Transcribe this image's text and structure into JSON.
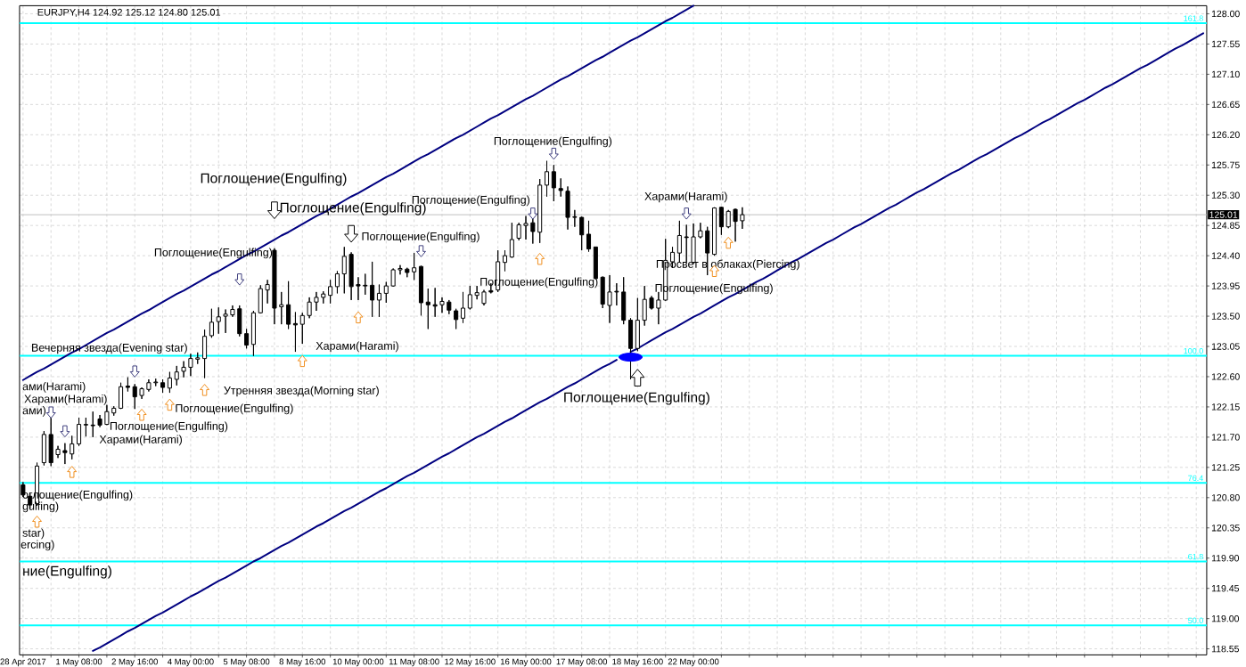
{
  "chart_data": {
    "type": "candlestick",
    "title": "EURJPY,H4 124.92 125.12 124.80 125.01",
    "categories": [
      "28 Apr 2017",
      null,
      null,
      null,
      null,
      null,
      null,
      null,
      "1 May 08:00",
      null,
      null,
      null,
      null,
      null,
      null,
      null,
      "2 May 16:00",
      null,
      null,
      null,
      null,
      null,
      null,
      null,
      "4 May 00:00",
      null,
      null,
      null,
      null,
      null,
      null,
      null,
      "5 May 08:00",
      null,
      null,
      null,
      null,
      null,
      null,
      null,
      "8 May 16:00",
      null,
      null,
      null,
      null,
      null,
      null,
      null,
      "10 May 00:00",
      null,
      null,
      null,
      null,
      null,
      null,
      null,
      "11 May 08:00",
      null,
      null,
      null,
      null,
      null,
      null,
      null,
      "12 May 16:00",
      null,
      null,
      null,
      null,
      null,
      null,
      null,
      "16 May 00:00",
      null,
      null,
      null,
      null,
      null,
      null,
      null,
      "17 May 08:00",
      null,
      null,
      null,
      null,
      null,
      null,
      null,
      "18 May 16:00",
      null,
      null,
      null,
      null,
      null,
      null,
      null,
      "22 May 00:00",
      null,
      null,
      null,
      null,
      null,
      null,
      null,
      null,
      null,
      null,
      null,
      null,
      null,
      null,
      null,
      null,
      null,
      null,
      null,
      null,
      null,
      null,
      null,
      null,
      null,
      null,
      null,
      null,
      null,
      null,
      null,
      null,
      null,
      null,
      null,
      null,
      null,
      null,
      null,
      null,
      null,
      null,
      null,
      null,
      null,
      null,
      null,
      null,
      null,
      null,
      null,
      null,
      null,
      null,
      null,
      null,
      null,
      null,
      null,
      null,
      null,
      null,
      null,
      null,
      null,
      null,
      null,
      null,
      null,
      null,
      null,
      null,
      null
    ],
    "ohlc": [
      [
        120.99,
        121.03,
        120.81,
        120.84
      ],
      [
        120.82,
        120.86,
        120.64,
        120.69
      ],
      [
        120.71,
        121.32,
        120.68,
        121.27
      ],
      [
        121.32,
        121.79,
        121.28,
        121.74
      ],
      [
        121.74,
        122.03,
        121.27,
        121.32
      ],
      [
        121.44,
        121.57,
        121.39,
        121.52
      ],
      [
        121.5,
        121.61,
        121.3,
        121.47
      ],
      [
        121.45,
        121.72,
        121.37,
        121.6
      ],
      [
        121.6,
        121.99,
        121.57,
        121.89
      ],
      [
        121.88,
        121.99,
        121.71,
        121.89
      ],
      [
        121.88,
        122.08,
        121.7,
        121.87
      ],
      [
        121.97,
        122.03,
        121.85,
        121.88
      ],
      [
        121.89,
        122.18,
        121.88,
        122.08
      ],
      [
        122.06,
        122.16,
        122.02,
        122.13
      ],
      [
        122.13,
        122.51,
        122.12,
        122.45
      ],
      [
        122.46,
        122.59,
        122.38,
        122.44
      ],
      [
        122.45,
        122.49,
        122.12,
        122.3
      ],
      [
        122.32,
        122.44,
        122.27,
        122.42
      ],
      [
        122.41,
        122.56,
        122.38,
        122.51
      ],
      [
        122.51,
        122.57,
        122.46,
        122.52
      ],
      [
        122.51,
        122.56,
        122.36,
        122.44
      ],
      [
        122.43,
        122.67,
        122.36,
        122.58
      ],
      [
        122.56,
        122.76,
        122.47,
        122.67
      ],
      [
        122.68,
        122.83,
        122.59,
        122.74
      ],
      [
        122.74,
        122.94,
        122.61,
        122.87
      ],
      [
        122.86,
        122.96,
        122.79,
        122.88
      ],
      [
        122.87,
        123.3,
        122.58,
        123.2
      ],
      [
        123.21,
        123.61,
        123.18,
        123.41
      ],
      [
        123.42,
        123.63,
        123.24,
        123.49
      ],
      [
        123.5,
        123.6,
        123.25,
        123.53
      ],
      [
        123.52,
        123.66,
        123.49,
        123.6
      ],
      [
        123.61,
        123.66,
        123.2,
        123.24
      ],
      [
        123.24,
        123.31,
        123.02,
        123.07
      ],
      [
        123.08,
        123.58,
        122.91,
        123.55
      ],
      [
        123.55,
        123.96,
        123.54,
        123.91
      ],
      [
        123.89,
        124.04,
        123.69,
        123.97
      ],
      [
        124.48,
        124.51,
        123.38,
        123.62
      ],
      [
        123.64,
        123.86,
        123.38,
        123.67
      ],
      [
        123.67,
        124.02,
        123.31,
        123.38
      ],
      [
        123.39,
        123.56,
        122.97,
        123.37
      ],
      [
        123.38,
        123.55,
        123.09,
        123.51
      ],
      [
        123.51,
        123.78,
        123.47,
        123.71
      ],
      [
        123.71,
        123.86,
        123.58,
        123.78
      ],
      [
        123.78,
        123.87,
        123.69,
        123.83
      ],
      [
        123.81,
        124.04,
        123.69,
        123.94
      ],
      [
        123.94,
        124.17,
        123.84,
        124.13
      ],
      [
        124.13,
        124.53,
        123.84,
        124.39
      ],
      [
        124.42,
        124.45,
        123.74,
        123.94
      ],
      [
        123.97,
        124.08,
        123.74,
        123.95
      ],
      [
        123.96,
        124.13,
        123.82,
        123.95
      ],
      [
        123.96,
        124.31,
        123.49,
        123.74
      ],
      [
        123.74,
        123.97,
        123.49,
        123.84
      ],
      [
        123.84,
        124.01,
        123.7,
        123.95
      ],
      [
        123.95,
        124.21,
        123.94,
        124.19
      ],
      [
        124.19,
        124.26,
        124.12,
        124.21
      ],
      [
        124.2,
        124.22,
        124.08,
        124.15
      ],
      [
        124.16,
        124.44,
        124.04,
        124.22
      ],
      [
        124.24,
        124.25,
        123.51,
        123.7
      ],
      [
        123.71,
        123.91,
        123.31,
        123.67
      ],
      [
        123.67,
        123.92,
        123.49,
        123.65
      ],
      [
        123.67,
        123.78,
        123.55,
        123.72
      ],
      [
        123.71,
        123.74,
        123.53,
        123.59
      ],
      [
        123.58,
        123.61,
        123.31,
        123.45
      ],
      [
        123.47,
        123.86,
        123.4,
        123.62
      ],
      [
        123.62,
        123.95,
        123.6,
        123.82
      ],
      [
        123.81,
        123.95,
        123.75,
        123.85
      ],
      [
        123.69,
        123.89,
        123.66,
        123.86
      ],
      [
        123.88,
        123.99,
        123.84,
        123.86
      ],
      [
        123.89,
        124.48,
        123.86,
        124.31
      ],
      [
        124.3,
        124.48,
        124.17,
        124.4
      ],
      [
        124.38,
        124.89,
        124.37,
        124.64
      ],
      [
        124.66,
        124.89,
        124.63,
        124.86
      ],
      [
        124.85,
        124.99,
        124.64,
        124.88
      ],
      [
        124.89,
        124.97,
        124.58,
        124.76
      ],
      [
        124.75,
        125.54,
        124.59,
        125.45
      ],
      [
        125.45,
        125.81,
        125.28,
        125.65
      ],
      [
        125.65,
        125.75,
        125.21,
        125.41
      ],
      [
        125.4,
        125.55,
        125.28,
        125.37
      ],
      [
        125.36,
        125.43,
        124.79,
        124.97
      ],
      [
        124.98,
        125.08,
        124.83,
        124.97
      ],
      [
        124.97,
        124.98,
        124.48,
        124.71
      ],
      [
        124.72,
        124.92,
        124.46,
        124.5
      ],
      [
        124.53,
        124.53,
        124.05,
        124.06
      ],
      [
        124.08,
        124.09,
        123.62,
        123.68
      ],
      [
        123.66,
        124.11,
        123.4,
        123.86
      ],
      [
        123.87,
        123.99,
        123.66,
        123.86
      ],
      [
        123.86,
        124.08,
        123.38,
        123.44
      ],
      [
        123.44,
        123.47,
        122.56,
        123.02
      ],
      [
        123.02,
        123.77,
        122.98,
        123.44
      ],
      [
        123.44,
        123.95,
        123.36,
        123.75
      ],
      [
        123.77,
        123.8,
        123.6,
        123.62
      ],
      [
        123.62,
        123.86,
        123.38,
        123.74
      ],
      [
        123.74,
        124.65,
        123.73,
        124.33
      ],
      [
        124.31,
        124.53,
        124.22,
        124.45
      ],
      [
        124.44,
        124.92,
        124.3,
        124.7
      ],
      [
        124.68,
        124.86,
        124.3,
        124.67
      ],
      [
        124.3,
        124.88,
        124.28,
        124.68
      ],
      [
        124.68,
        124.89,
        124.66,
        124.77
      ],
      [
        124.77,
        124.83,
        124.11,
        124.44
      ],
      [
        124.42,
        125.12,
        124.4,
        125.11
      ],
      [
        125.12,
        125.13,
        124.71,
        124.83
      ],
      [
        124.83,
        125.08,
        124.81,
        125.06
      ],
      [
        125.09,
        125.1,
        124.61,
        124.91
      ],
      [
        124.92,
        125.12,
        124.8,
        125.01
      ],
      null,
      null,
      null,
      null,
      null,
      null,
      null,
      null,
      null,
      null,
      null,
      null,
      null,
      null,
      null,
      null,
      null,
      null,
      null,
      null,
      null,
      null,
      null,
      null,
      null,
      null,
      null,
      null,
      null,
      null,
      null,
      null,
      null,
      null,
      null,
      null,
      null,
      null,
      null,
      null,
      null,
      null,
      null,
      null,
      null,
      null,
      null,
      null,
      null,
      null,
      null,
      null,
      null,
      null,
      null,
      null,
      null,
      null,
      null,
      null,
      null,
      null,
      null,
      null,
      null,
      null
    ],
    "series": [
      {
        "type": "line",
        "color": "#000080",
        "values": [
          122.55,
          122.61,
          122.67,
          122.72,
          122.78,
          122.84,
          122.9,
          122.96,
          123.01,
          123.07,
          123.13,
          123.19,
          123.25,
          123.3,
          123.36,
          123.42,
          123.48,
          123.54,
          123.59,
          123.65,
          123.71,
          123.77,
          123.83,
          123.88,
          123.94,
          124.0,
          124.06,
          124.12,
          124.17,
          124.23,
          124.29,
          124.35,
          124.41,
          124.46,
          124.52,
          124.58,
          124.64,
          124.7,
          124.75,
          124.81,
          124.87,
          124.93,
          124.99,
          125.04,
          125.1,
          125.16,
          125.22,
          125.28,
          125.33,
          125.39,
          125.45,
          125.51,
          125.57,
          125.62,
          125.68,
          125.74,
          125.8,
          125.86,
          125.91,
          125.97,
          126.03,
          126.09,
          126.15,
          126.2,
          126.26,
          126.32,
          126.38,
          126.44,
          126.49,
          126.55,
          126.61,
          126.67,
          126.73,
          126.78,
          126.84,
          126.9,
          126.96,
          127.02,
          127.07,
          127.13,
          127.19,
          127.25,
          127.31,
          127.36,
          127.42,
          127.48,
          127.54,
          127.6,
          127.65,
          127.71,
          127.77,
          127.83,
          127.89,
          127.94,
          128.0,
          128.06,
          128.12,
          null,
          null,
          null,
          null,
          null,
          null,
          null,
          null,
          null,
          null,
          null,
          null,
          null,
          null,
          null,
          null,
          null,
          null,
          null,
          null,
          null,
          null,
          null,
          null,
          null,
          null,
          null,
          null,
          null,
          null,
          null,
          null,
          null,
          null,
          null,
          null,
          null,
          null,
          null,
          null,
          null,
          null,
          null,
          null,
          null,
          null,
          null,
          null,
          null,
          null,
          null,
          null,
          null,
          null,
          null,
          null,
          null,
          null,
          null,
          null,
          null,
          null,
          null,
          null,
          null,
          null,
          null,
          null,
          null,
          null,
          null,
          null,
          null
        ]
      },
      {
        "type": "line",
        "color": "#000080",
        "values": [
          null,
          null,
          null,
          null,
          null,
          null,
          null,
          null,
          null,
          null,
          118.52,
          118.57,
          118.63,
          118.69,
          118.75,
          118.81,
          118.86,
          118.92,
          118.98,
          119.04,
          119.09,
          119.15,
          119.21,
          119.27,
          119.33,
          119.38,
          119.44,
          119.5,
          119.56,
          119.61,
          119.67,
          119.73,
          119.79,
          119.85,
          119.9,
          119.96,
          120.02,
          120.08,
          120.13,
          120.19,
          120.25,
          120.31,
          120.37,
          120.42,
          120.48,
          120.54,
          120.6,
          120.65,
          120.71,
          120.77,
          120.83,
          120.89,
          120.94,
          121.0,
          121.06,
          121.12,
          121.17,
          121.23,
          121.29,
          121.35,
          121.41,
          121.46,
          121.52,
          121.58,
          121.64,
          121.7,
          121.75,
          121.81,
          121.87,
          121.93,
          121.98,
          122.04,
          122.1,
          122.16,
          122.22,
          122.27,
          122.33,
          122.39,
          122.45,
          122.5,
          122.56,
          122.62,
          122.68,
          122.74,
          122.79,
          122.85,
          null,
          122.97,
          123.02,
          123.08,
          123.14,
          123.2,
          123.26,
          123.31,
          123.37,
          123.43,
          123.49,
          123.54,
          123.6,
          123.66,
          123.72,
          123.78,
          123.83,
          123.89,
          123.95,
          124.01,
          124.06,
          124.12,
          124.18,
          124.24,
          124.3,
          124.35,
          124.41,
          124.47,
          124.53,
          124.59,
          124.64,
          124.7,
          124.76,
          124.82,
          124.87,
          124.93,
          124.99,
          125.05,
          125.11,
          125.16,
          125.22,
          125.28,
          125.34,
          125.39,
          125.45,
          125.51,
          125.57,
          125.63,
          125.68,
          125.74,
          125.8,
          125.86,
          125.91,
          125.97,
          126.03,
          126.09,
          126.15,
          126.2,
          126.26,
          126.32,
          126.38,
          126.43,
          126.49,
          126.55,
          126.61,
          126.67,
          126.72,
          126.78,
          126.84,
          126.9,
          126.95,
          127.01,
          127.07,
          127.13,
          127.19,
          127.24,
          127.3,
          127.36,
          127.42,
          127.48,
          127.53,
          127.59,
          127.65,
          127.71
        ]
      },
      {
        "type": "scatter",
        "color": "#404080",
        "values": [
          null,
          null,
          null,
          null,
          122.07,
          null,
          121.79,
          null,
          null,
          null,
          null,
          null,
          null,
          null,
          null,
          null,
          122.68,
          null,
          null,
          null,
          null,
          null,
          null,
          null,
          null,
          null,
          null,
          null,
          null,
          null,
          null,
          124.05,
          null,
          null,
          null,
          null,
          null,
          null,
          null,
          null,
          null,
          null,
          null,
          null,
          null,
          null,
          null,
          null,
          null,
          null,
          null,
          null,
          null,
          null,
          null,
          null,
          null,
          124.47,
          null,
          null,
          null,
          null,
          null,
          null,
          null,
          null,
          null,
          null,
          null,
          null,
          null,
          null,
          null,
          125.03,
          null,
          null,
          125.92,
          null,
          null,
          null,
          null,
          null,
          null,
          null,
          null,
          null,
          null,
          null,
          null,
          null,
          null,
          null,
          null,
          null,
          null,
          125.03,
          null,
          null,
          null,
          null,
          null,
          null,
          null,
          null,
          null,
          null,
          null,
          null,
          null,
          null,
          null,
          null,
          null,
          null,
          null,
          null,
          null,
          null,
          null,
          null,
          null,
          null,
          null,
          null,
          null,
          null,
          null,
          null,
          null,
          null,
          null,
          null,
          null,
          null,
          null,
          null,
          null,
          null,
          null,
          null,
          null,
          null,
          null,
          null,
          null,
          null,
          null,
          null,
          null,
          null,
          null,
          null,
          null,
          null,
          null,
          null,
          null,
          null,
          null,
          null,
          null,
          null,
          null,
          null,
          null,
          null,
          null,
          null,
          null,
          null
        ]
      },
      {
        "type": "scatter",
        "color": "#f09020",
        "values": [
          null,
          null,
          120.44,
          null,
          null,
          null,
          null,
          121.18,
          null,
          null,
          null,
          null,
          null,
          null,
          null,
          null,
          null,
          122.03,
          null,
          null,
          null,
          122.18,
          null,
          null,
          null,
          null,
          122.4,
          null,
          null,
          null,
          null,
          null,
          null,
          null,
          null,
          null,
          null,
          null,
          null,
          null,
          122.83,
          null,
          null,
          null,
          null,
          null,
          null,
          null,
          123.48,
          null,
          null,
          null,
          null,
          null,
          null,
          null,
          null,
          null,
          null,
          null,
          null,
          null,
          null,
          null,
          null,
          null,
          null,
          null,
          null,
          null,
          null,
          null,
          null,
          null,
          124.35,
          null,
          null,
          null,
          null,
          null,
          null,
          null,
          null,
          null,
          null,
          null,
          null,
          null,
          null,
          null,
          null,
          null,
          null,
          null,
          null,
          null,
          null,
          null,
          null,
          124.17,
          null,
          124.59,
          null,
          null,
          null,
          null,
          null,
          null,
          null,
          null,
          null,
          null,
          null,
          null,
          null,
          null,
          null,
          null,
          null,
          null,
          null,
          null,
          null,
          null,
          null,
          null,
          null,
          null,
          null,
          null,
          null,
          null,
          null,
          null,
          null,
          null,
          null,
          null,
          null,
          null,
          null,
          null,
          null,
          null,
          null,
          null,
          null,
          null,
          null,
          null,
          null,
          null,
          null,
          null,
          null,
          null,
          null,
          null,
          null,
          null,
          null,
          null,
          null,
          null,
          null,
          null,
          null,
          null,
          null,
          null
        ]
      },
      {
        "type": "scatter",
        "color": "#000000",
        "values": [
          null,
          null,
          null,
          null,
          null,
          null,
          null,
          null,
          null,
          null,
          null,
          null,
          null,
          null,
          null,
          null,
          null,
          null,
          null,
          null,
          null,
          null,
          null,
          null,
          null,
          null,
          null,
          null,
          null,
          null,
          null,
          null,
          null,
          null,
          null,
          null,
          125.08,
          null,
          null,
          null,
          null,
          null,
          null,
          null,
          null,
          null,
          null,
          124.73,
          null,
          null,
          null,
          null,
          null,
          null,
          null,
          null,
          null,
          null,
          null,
          null,
          null,
          null,
          null,
          null,
          null,
          null,
          null,
          null,
          null,
          null,
          null,
          null,
          null,
          null,
          null,
          null,
          null,
          null,
          null,
          null,
          null,
          null,
          null,
          null,
          null,
          null,
          null,
          null,
          122.58,
          null,
          null,
          null,
          null,
          null,
          null,
          null,
          null,
          null,
          null,
          null,
          null,
          null,
          null,
          null,
          null,
          null,
          null,
          null,
          null,
          null,
          null,
          null,
          null,
          null,
          null,
          null,
          null,
          null,
          null,
          null,
          null,
          null,
          null,
          null,
          null,
          null,
          null,
          null,
          null,
          null,
          null,
          null,
          null,
          null,
          null,
          null,
          null,
          null,
          null,
          null,
          null,
          null,
          null,
          null,
          null,
          null,
          null,
          null,
          null,
          null,
          null,
          null,
          null,
          null,
          null,
          null,
          null,
          null,
          null,
          null,
          null,
          null,
          null,
          null,
          null,
          null,
          null,
          null,
          null,
          null
        ]
      },
      {
        "type": "scatter",
        "color": "#0000ff",
        "values": [
          null,
          null,
          null,
          null,
          null,
          null,
          null,
          null,
          null,
          null,
          null,
          null,
          null,
          null,
          null,
          null,
          null,
          null,
          null,
          null,
          null,
          null,
          null,
          null,
          null,
          null,
          null,
          null,
          null,
          null,
          null,
          null,
          null,
          null,
          null,
          null,
          null,
          null,
          null,
          null,
          null,
          null,
          null,
          null,
          null,
          null,
          null,
          null,
          null,
          null,
          null,
          null,
          null,
          null,
          null,
          null,
          null,
          null,
          null,
          null,
          null,
          null,
          null,
          null,
          null,
          null,
          null,
          null,
          null,
          null,
          null,
          null,
          null,
          null,
          null,
          null,
          null,
          null,
          null,
          null,
          null,
          null,
          null,
          null,
          null,
          null,
          null,
          122.89,
          null,
          null,
          null,
          null,
          null,
          null,
          null,
          null,
          null,
          null,
          null,
          null,
          null,
          null,
          null,
          null,
          null,
          null,
          null,
          null,
          null,
          null,
          null,
          null,
          null,
          null,
          null,
          null,
          null,
          null,
          null,
          null,
          null,
          null,
          null,
          null,
          null,
          null,
          null,
          null,
          null,
          null,
          null,
          null,
          null,
          null,
          null,
          null,
          null,
          null,
          null,
          null,
          null,
          null,
          null,
          null,
          null,
          null,
          null,
          null,
          null,
          null,
          null,
          null,
          null,
          null,
          null,
          null,
          null,
          null,
          null,
          null,
          null,
          null,
          null,
          null,
          null,
          null,
          null,
          null,
          null,
          null
        ]
      }
    ],
    "ylim": [
      118.46,
      128.12
    ],
    "yticks": [
      118.55,
      {
        "value": 119,
        "label": "119.00"
      },
      119.45,
      {
        "value": 119.9,
        "label": "119.90"
      },
      120.35,
      {
        "value": 120.8,
        "label": "120.80"
      },
      121.25,
      {
        "value": 121.7,
        "label": "121.70"
      },
      122.15,
      {
        "value": 122.6,
        "label": "122.60"
      },
      123.05,
      {
        "value": 123.5,
        "label": "123.50"
      },
      123.95,
      {
        "value": 124.4,
        "label": "124.40"
      },
      124.85,
      {
        "value": 125.3,
        "label": "125.30"
      },
      125.75,
      {
        "value": 126.2,
        "label": "126.20"
      },
      126.65,
      {
        "value": 127.1,
        "label": "127.10"
      },
      127.55,
      {
        "value": 128,
        "label": "128.00"
      }
    ],
    "grid": true,
    "ref_lines": [
      {
        "axis": "y",
        "value": 127.86,
        "color": "#00ffff"
      },
      {
        "axis": "y",
        "value": 122.91,
        "color": "#00ffff"
      },
      {
        "axis": "y",
        "value": 121.02,
        "color": "#00ffff"
      },
      {
        "axis": "y",
        "value": 119.85,
        "color": "#00ffff"
      },
      {
        "axis": "y",
        "value": 118.9,
        "color": "#00ffff"
      },
      {
        "axis": "y",
        "value": 125.01,
        "label": "125.01",
        "color": "#c0c0c0"
      }
    ],
    "annotations": [
      "Поглощение(Engulfing)",
      "Поглощение(Engulfing)",
      "Поглощение(Engulfing)",
      "Поглощение(Engulfing)",
      "Вечерняя звезда(Evening star)",
      "Утренняя звезда(Morning star)",
      "Харами(Harami)",
      "Поглощение(Engulfing)",
      "Поглощение(Engulfing)",
      "Харами(Harami)",
      "Харами(Harami)",
      "ами(Harami)",
      "ами)",
      "оглощение(Engulfing)",
      "gulfing)",
      "star)",
      "ercing)",
      "ние(Engulfing)",
      "Поглощение(Engulfing)",
      "Поглощение(Engulfing)",
      "Поглощение(Engulfing)",
      "Харами(Harami)",
      "Просвет в облаках(Piercing)",
      "Поглощение(Engulfing)",
      "Поглощение(Engulfing)",
      "161.8",
      "100.0",
      "76.4",
      "61.8",
      "50.0"
    ]
  }
}
